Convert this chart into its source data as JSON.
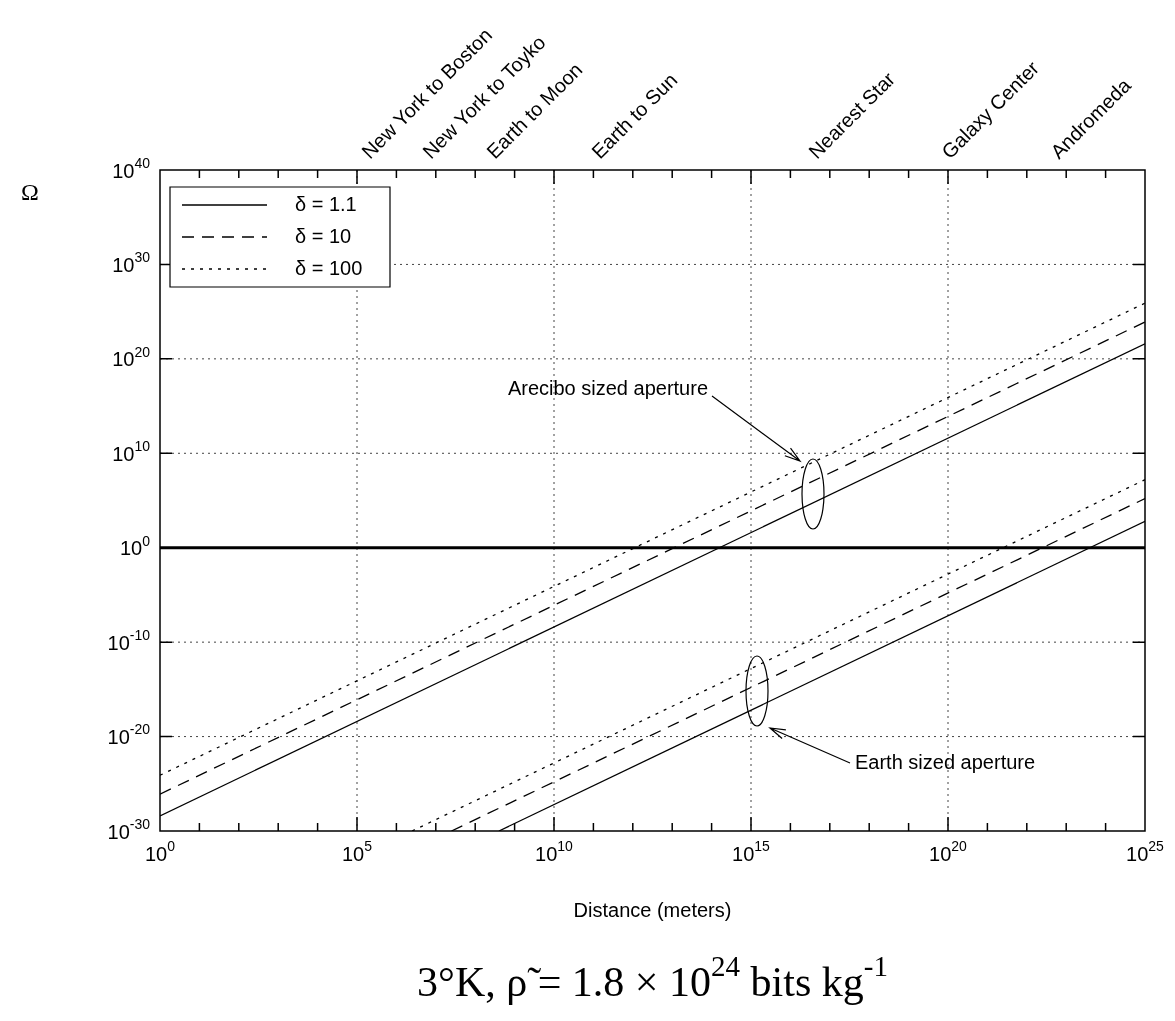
{
  "chart_data": {
    "type": "line",
    "title": "3°K, ρ̃ = 1.8 × 10$^{24}$ bits kg$^{-1}$",
    "xlabel": "Distance (meters)",
    "ylabel": "Ω",
    "log": "xy",
    "xlim": [
      1,
      1e+25
    ],
    "xticks": [
      {
        "value": 1,
        "label": "10$^{0}$"
      },
      {
        "value": 10.0,
        "label": null
      },
      {
        "value": 100.0,
        "label": null
      },
      {
        "value": 1000.0,
        "label": null
      },
      {
        "value": 10000.0,
        "label": null
      },
      {
        "value": 100000.0,
        "label": "10$^{5}$"
      },
      {
        "value": 1000000.0,
        "label": null
      },
      {
        "value": 10000000.0,
        "label": null
      },
      {
        "value": 100000000.0,
        "label": null
      },
      {
        "value": 1000000000.0,
        "label": null
      },
      {
        "value": 10000000000.0,
        "label": "10$^{10}$"
      },
      {
        "value": 100000000000.0,
        "label": null
      },
      {
        "value": 1000000000000.0,
        "label": null
      },
      {
        "value": 10000000000000.0,
        "label": null
      },
      {
        "value": 100000000000000.0,
        "label": null
      },
      {
        "value": 1000000000000000.0,
        "label": "10$^{15}$"
      },
      {
        "value": 1e+16,
        "label": null
      },
      {
        "value": 1e+17,
        "label": null
      },
      {
        "value": 1e+18,
        "label": null
      },
      {
        "value": 1e+19,
        "label": null
      },
      {
        "value": 1e+20,
        "label": "10$^{20}$"
      },
      {
        "value": 1e+21,
        "label": null
      },
      {
        "value": 1e+22,
        "label": null
      },
      {
        "value": 1e+23,
        "label": null
      },
      {
        "value": 1e+24,
        "label": null
      },
      {
        "value": 1e+25,
        "label": "10$^{25}$"
      }
    ],
    "ylim": [
      1e-30,
      1e+40
    ],
    "yticks": [
      {
        "value": 1e-30,
        "label": "10$^{-30}$"
      },
      {
        "value": 1e-20,
        "label": "10$^{-20}$"
      },
      {
        "value": 1e-10,
        "label": "10$^{-10}$"
      },
      {
        "value": 1,
        "label": "10$^{0}$"
      },
      {
        "value": 10000000000.0,
        "label": "10$^{10}$"
      },
      {
        "value": 1e+20,
        "label": "10$^{20}$"
      },
      {
        "value": 1e+30,
        "label": "10$^{30}$"
      },
      {
        "value": 1e+40,
        "label": "10$^{40}$"
      }
    ],
    "grid": true,
    "legend": "top left",
    "marker": "none",
    "ref_lines": [
      {
        "axis": "y",
        "value": 1
      }
    ],
    "annotations": [
      "Earth sized aperture",
      "Arecibo sized aperture",
      "New York to Boston",
      "New York to Toyko",
      "Earth to Moon",
      "Earth to Sun",
      "Nearest Star",
      "Galaxy Center",
      "Andromeda"
    ],
    "series": [
      {
        "name": "δ = 1.1",
        "color": "#000000",
        "line_style": "solid",
        "x": [
          1,
          1e+25
        ],
        "values": [
          4e-29,
          4e+21
        ]
      },
      {
        "name": "δ = 10",
        "color": "#000000",
        "line_style": "dashed",
        "x": [
          1,
          1e+25
        ],
        "values": [
          8e-27,
          8e+23
        ]
      },
      {
        "name": "δ = 100",
        "color": "#000000",
        "line_style": "dotted",
        "x": [
          1,
          1e+25
        ],
        "values": [
          8e-25,
          8e+25
        ]
      },
      {
        "color": "#000000",
        "line_style": "solid",
        "x": [
          400000000.0,
          1e+25
        ],
        "values": [
          1e-30,
          630
        ]
      },
      {
        "color": "#000000",
        "line_style": "dashed",
        "x": [
          25000000.0,
          1e+25
        ],
        "values": [
          1e-30,
          160000.0
        ]
      },
      {
        "color": "#000000",
        "line_style": "dotted",
        "x": [
          2500000.0,
          1e+25
        ],
        "values": [
          1e-30,
          16000000.0
        ]
      }
    ]
  }
}
